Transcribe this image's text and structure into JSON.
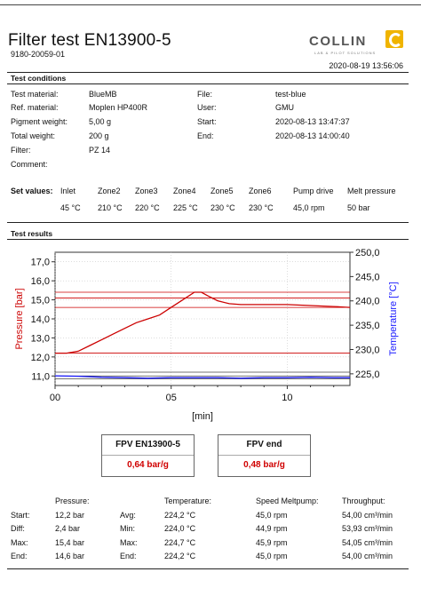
{
  "header": {
    "title": "Filter test EN13900-5",
    "doc_id": "9180-20059-01",
    "datetime": "2020-08-19 13:56:06",
    "logo_text": "COLLIN",
    "logo_subtitle": "LAB & PILOT SOLUTIONS"
  },
  "conditions": {
    "heading": "Test conditions",
    "left": [
      {
        "label": "Test material:",
        "value": "BlueMB"
      },
      {
        "label": "Ref. material:",
        "value": "Moplen HP400R"
      },
      {
        "label": "Pigment weight:",
        "value": "5,00 g"
      },
      {
        "label": "Total weight:",
        "value": "200 g"
      },
      {
        "label": "Filter:",
        "value": "PZ 14"
      },
      {
        "label": "Comment:",
        "value": ""
      }
    ],
    "right": [
      {
        "label": "File:",
        "value": "test-blue"
      },
      {
        "label": "User:",
        "value": "GMU"
      },
      {
        "label": "Start:",
        "value": "2020-08-13 13:47:37"
      },
      {
        "label": "End:",
        "value": "2020-08-13 14:00:40"
      }
    ]
  },
  "set_values": {
    "heading": "Set values:",
    "headers": [
      "Inlet",
      "Zone2",
      "Zone3",
      "Zone4",
      "Zone5",
      "Zone6",
      "Pump drive",
      "Melt pressure"
    ],
    "values": [
      "45 °C",
      "210 °C",
      "220 °C",
      "225 °C",
      "230 °C",
      "230 °C",
      "45,0 rpm",
      "50 bar"
    ]
  },
  "results_heading": "Test results",
  "chart_data": {
    "type": "line",
    "xlabel": "[min]",
    "x_ticks": [
      "00",
      "05",
      "10"
    ],
    "xlim": [
      0,
      12.7
    ],
    "left_axis": {
      "label": "Pressure [bar]",
      "ylim": [
        10.5,
        17.5
      ],
      "ticks": [
        "17,0",
        "16,0",
        "15,0",
        "14,0",
        "13,0",
        "12,0",
        "11,0"
      ],
      "tick_values": [
        17,
        16,
        15,
        14,
        13,
        12,
        11
      ]
    },
    "right_axis": {
      "label": "Temperature [°C]",
      "ylim": [
        222.6,
        250.0
      ],
      "ticks": [
        "250,0",
        "245,0",
        "240,0",
        "235,0",
        "230,0",
        "225,0"
      ],
      "tick_values": [
        250,
        245,
        240,
        235,
        230,
        225
      ]
    },
    "reference_lines": [
      {
        "axis": "left",
        "y": 15.4,
        "color": "#cc0000"
      },
      {
        "axis": "left",
        "y": 15.1,
        "color": "#cc0000"
      },
      {
        "axis": "left",
        "y": 14.6,
        "color": "#cc0000"
      },
      {
        "axis": "left",
        "y": 12.2,
        "color": "#cc0000"
      },
      {
        "axis": "left",
        "y": 11.2,
        "color": "#444444"
      },
      {
        "axis": "left",
        "y": 11.0,
        "color": "#444444"
      },
      {
        "axis": "left",
        "y": 10.85,
        "color": "#444444"
      }
    ],
    "series": [
      {
        "name": "Pressure",
        "axis": "left",
        "color": "#cc0000",
        "x": [
          0,
          0.5,
          1.0,
          1.5,
          2.0,
          2.5,
          3.0,
          3.5,
          4.0,
          4.5,
          5.0,
          5.5,
          6.0,
          6.3,
          6.6,
          7.0,
          7.5,
          8.0,
          9.0,
          10.0,
          11.0,
          12.0,
          12.7
        ],
        "y": [
          12.2,
          12.2,
          12.3,
          12.6,
          12.9,
          13.2,
          13.5,
          13.8,
          14.0,
          14.2,
          14.6,
          15.0,
          15.4,
          15.4,
          15.2,
          14.95,
          14.8,
          14.75,
          14.75,
          14.75,
          14.7,
          14.65,
          14.6
        ]
      },
      {
        "name": "Temperature",
        "axis": "right",
        "color": "#1a1aff",
        "x": [
          0,
          1,
          2,
          3,
          4,
          5,
          6,
          7,
          8,
          9,
          10,
          11,
          12,
          12.7
        ],
        "y": [
          224.6,
          224.5,
          224.3,
          224.2,
          224.1,
          224.2,
          224.2,
          224.2,
          224.1,
          224.2,
          224.2,
          224.3,
          224.2,
          224.2
        ]
      }
    ]
  },
  "fpv": [
    {
      "title": "FPV EN13900-5",
      "value": "0,64 bar/g"
    },
    {
      "title": "FPV end",
      "value": "0,48 bar/g"
    }
  ],
  "summary": {
    "pressure_header": "Pressure:",
    "temperature_header": "Temperature:",
    "speed_header": "Speed Meltpump:",
    "throughput_header": "Throughput:",
    "rows": [
      {
        "label": "Start:",
        "pressure": "12,2 bar",
        "t_label": "Avg:",
        "temperature": "224,2 °C",
        "speed": "45,0 rpm",
        "throughput": "54,00 cm³/min"
      },
      {
        "label": "Diff:",
        "pressure": "2,4 bar",
        "t_label": "Min:",
        "temperature": "224,0 °C",
        "speed": "44,9 rpm",
        "throughput": "53,93 cm³/min"
      },
      {
        "label": "Max:",
        "pressure": "15,4 bar",
        "t_label": "Max:",
        "temperature": "224,7 °C",
        "speed": "45,9 rpm",
        "throughput": "54,05 cm³/min"
      },
      {
        "label": "End:",
        "pressure": "14,6 bar",
        "t_label": "End:",
        "temperature": "224,2 °C",
        "speed": "45,0 rpm",
        "throughput": "54,00 cm³/min"
      }
    ]
  },
  "colors": {
    "pressure": "#cc0000",
    "temperature": "#1a1aff",
    "logo_accent": "#f0b400"
  }
}
